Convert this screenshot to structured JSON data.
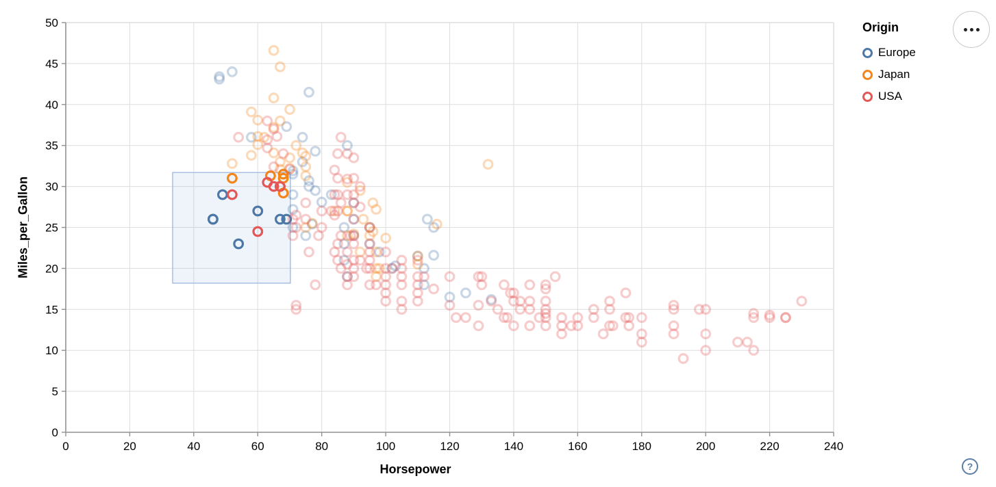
{
  "chart_data": {
    "type": "scatter",
    "title": "",
    "xlabel": "Horsepower",
    "ylabel": "Miles_per_Gallon",
    "xlim": [
      0,
      240
    ],
    "ylim": [
      0,
      50
    ],
    "x_ticks": [
      0,
      20,
      40,
      60,
      80,
      100,
      120,
      140,
      160,
      180,
      200,
      220,
      240
    ],
    "y_ticks": [
      0,
      5,
      10,
      15,
      20,
      25,
      30,
      35,
      40,
      45,
      50
    ],
    "grid": true,
    "legend": {
      "title": "Origin",
      "position": "right",
      "entries": [
        {
          "label": "Europe",
          "color": "#4c78a8"
        },
        {
          "label": "Japan",
          "color": "#f58518"
        },
        {
          "label": "USA",
          "color": "#e45756"
        }
      ]
    },
    "brush": {
      "hp_min": 33.4,
      "hp_max": 70.2,
      "mpg_min": 18.2,
      "mpg_max": 31.7,
      "fill": "#7fa8d9",
      "fill_opacity": 0.13,
      "stroke": "#a6bfe3"
    },
    "point_style": {
      "radius": 6.3,
      "stroke_width": 3.2,
      "faded_opacity": 0.3
    },
    "origin_colors": {
      "e": "#4c78a8",
      "j": "#f58518",
      "u": "#e45756"
    },
    "points": [
      [
        46,
        26,
        "e"
      ],
      [
        46,
        26,
        "e"
      ],
      [
        49,
        29,
        "e"
      ],
      [
        54,
        23,
        "e"
      ],
      [
        60,
        27,
        "e"
      ],
      [
        67,
        26,
        "e"
      ],
      [
        69,
        26,
        "e"
      ],
      [
        67,
        30,
        "e"
      ],
      [
        67,
        30,
        "e"
      ],
      [
        87,
        25,
        "e"
      ],
      [
        90,
        24,
        "e"
      ],
      [
        95,
        25,
        "e"
      ],
      [
        113,
        26,
        "e"
      ],
      [
        90,
        28,
        "e"
      ],
      [
        76,
        30,
        "e"
      ],
      [
        112,
        18,
        "e"
      ],
      [
        87,
        21,
        "e"
      ],
      [
        112,
        20,
        "e"
      ],
      [
        90,
        26,
        "e"
      ],
      [
        75,
        24,
        "e"
      ],
      [
        83,
        29,
        "e"
      ],
      [
        71,
        25,
        "e"
      ],
      [
        95,
        23,
        "e"
      ],
      [
        87,
        23,
        "e"
      ],
      [
        98,
        22,
        "e"
      ],
      [
        115,
        25,
        "e"
      ],
      [
        71,
        29,
        "e"
      ],
      [
        110,
        21.5,
        "e"
      ],
      [
        88,
        19,
        "e"
      ],
      [
        102,
        20,
        "e"
      ],
      [
        78,
        29.5,
        "e"
      ],
      [
        58,
        36,
        "e"
      ],
      [
        48,
        43.1,
        "e"
      ],
      [
        103,
        20.3,
        "e"
      ],
      [
        125,
        17,
        "e"
      ],
      [
        115,
        21.6,
        "e"
      ],
      [
        133,
        16.2,
        "e"
      ],
      [
        71,
        31.5,
        "e"
      ],
      [
        71,
        31.9,
        "e"
      ],
      [
        77,
        25.4,
        "e"
      ],
      [
        71,
        27.2,
        "e"
      ],
      [
        69,
        37.3,
        "e"
      ],
      [
        48,
        43.4,
        "e"
      ],
      [
        78,
        34.3,
        "e"
      ],
      [
        76,
        41.5,
        "e"
      ],
      [
        74,
        33,
        "e"
      ],
      [
        80,
        28.1,
        "e"
      ],
      [
        76,
        30.7,
        "e"
      ],
      [
        88,
        35,
        "e"
      ],
      [
        52,
        44,
        "e"
      ],
      [
        74,
        36,
        "e"
      ],
      [
        120,
        16.5,
        "e"
      ],
      [
        52,
        31,
        "j"
      ],
      [
        64,
        31.3,
        "j"
      ],
      [
        68,
        31.5,
        "j"
      ],
      [
        68,
        31,
        "j"
      ],
      [
        68,
        29.2,
        "j"
      ],
      [
        67,
        30,
        "j"
      ],
      [
        95,
        24,
        "j"
      ],
      [
        88,
        27,
        "j"
      ],
      [
        88,
        27,
        "j"
      ],
      [
        95,
        25,
        "j"
      ],
      [
        97,
        19,
        "j"
      ],
      [
        98,
        20,
        "j"
      ],
      [
        92,
        22,
        "j"
      ],
      [
        65,
        46.6,
        "j"
      ],
      [
        67,
        44.6,
        "j"
      ],
      [
        65,
        40.8,
        "j"
      ],
      [
        58,
        39.1,
        "j"
      ],
      [
        60,
        38.1,
        "j"
      ],
      [
        65,
        37.2,
        "j"
      ],
      [
        60,
        36.1,
        "j"
      ],
      [
        67,
        38,
        "j"
      ],
      [
        70,
        39.4,
        "j"
      ],
      [
        52,
        32.8,
        "j"
      ],
      [
        75,
        31.3,
        "j"
      ],
      [
        96,
        28,
        "j"
      ],
      [
        75,
        25,
        "j"
      ],
      [
        116,
        25.4,
        "j"
      ],
      [
        97,
        22,
        "j"
      ],
      [
        110,
        21.5,
        "j"
      ],
      [
        93,
        26,
        "j"
      ],
      [
        67,
        32.1,
        "j"
      ],
      [
        88,
        30.5,
        "j"
      ],
      [
        72,
        35,
        "j"
      ],
      [
        77,
        25.5,
        "j"
      ],
      [
        97,
        20,
        "j"
      ],
      [
        110,
        20.5,
        "j"
      ],
      [
        132,
        32.7,
        "j"
      ],
      [
        75,
        33.7,
        "j"
      ],
      [
        97,
        27.2,
        "j"
      ],
      [
        74,
        34.1,
        "j"
      ],
      [
        90,
        24.2,
        "j"
      ],
      [
        96,
        24.5,
        "j"
      ],
      [
        70,
        33.5,
        "j"
      ],
      [
        75,
        32.4,
        "j"
      ],
      [
        67,
        33,
        "j"
      ],
      [
        65,
        34.1,
        "j"
      ],
      [
        62,
        36,
        "j"
      ],
      [
        60,
        35.1,
        "j"
      ],
      [
        58,
        33.8,
        "j"
      ],
      [
        70,
        32.2,
        "j"
      ],
      [
        100,
        23.7,
        "j"
      ],
      [
        88,
        24,
        "j"
      ],
      [
        84,
        27,
        "j"
      ],
      [
        92,
        29.5,
        "j"
      ],
      [
        52,
        29,
        "u"
      ],
      [
        60,
        24.5,
        "u"
      ],
      [
        63,
        30.5,
        "u"
      ],
      [
        65,
        30,
        "u"
      ],
      [
        67,
        30,
        "u"
      ],
      [
        130,
        18,
        "u"
      ],
      [
        165,
        15,
        "u"
      ],
      [
        150,
        18,
        "u"
      ],
      [
        150,
        16,
        "u"
      ],
      [
        140,
        17,
        "u"
      ],
      [
        198,
        15,
        "u"
      ],
      [
        220,
        14,
        "u"
      ],
      [
        215,
        14,
        "u"
      ],
      [
        225,
        14,
        "u"
      ],
      [
        190,
        15,
        "u"
      ],
      [
        170,
        15,
        "u"
      ],
      [
        160,
        14,
        "u"
      ],
      [
        150,
        15,
        "u"
      ],
      [
        225,
        14,
        "u"
      ],
      [
        215,
        10,
        "u"
      ],
      [
        200,
        10,
        "u"
      ],
      [
        210,
        11,
        "u"
      ],
      [
        193,
        9,
        "u"
      ],
      [
        175,
        17,
        "u"
      ],
      [
        153,
        19,
        "u"
      ],
      [
        180,
        14,
        "u"
      ],
      [
        170,
        13,
        "u"
      ],
      [
        175,
        14,
        "u"
      ],
      [
        145,
        16,
        "u"
      ],
      [
        137,
        18,
        "u"
      ],
      [
        150,
        14,
        "u"
      ],
      [
        158,
        13,
        "u"
      ],
      [
        140,
        13,
        "u"
      ],
      [
        150,
        14.5,
        "u"
      ],
      [
        140,
        16,
        "u"
      ],
      [
        148,
        14,
        "u"
      ],
      [
        145,
        13,
        "u"
      ],
      [
        137,
        14,
        "u"
      ],
      [
        145,
        18,
        "u"
      ],
      [
        230,
        16,
        "u"
      ],
      [
        180,
        12,
        "u"
      ],
      [
        170,
        16,
        "u"
      ],
      [
        190,
        12,
        "u"
      ],
      [
        155,
        13,
        "u"
      ],
      [
        142,
        15,
        "u"
      ],
      [
        155,
        12,
        "u"
      ],
      [
        160,
        13,
        "u"
      ],
      [
        150,
        13,
        "u"
      ],
      [
        150,
        17.5,
        "u"
      ],
      [
        155,
        14,
        "u"
      ],
      [
        145,
        15,
        "u"
      ],
      [
        165,
        14,
        "u"
      ],
      [
        139,
        17,
        "u"
      ],
      [
        129,
        15.5,
        "u"
      ],
      [
        138,
        14,
        "u"
      ],
      [
        135,
        15,
        "u"
      ],
      [
        142,
        16,
        "u"
      ],
      [
        176,
        14,
        "u"
      ],
      [
        176,
        13,
        "u"
      ],
      [
        171,
        13,
        "u"
      ],
      [
        168,
        12,
        "u"
      ],
      [
        180,
        11,
        "u"
      ],
      [
        190,
        15.5,
        "u"
      ],
      [
        190,
        13,
        "u"
      ],
      [
        200,
        15,
        "u"
      ],
      [
        200,
        12,
        "u"
      ],
      [
        213,
        11,
        "u"
      ],
      [
        215,
        14.5,
        "u"
      ],
      [
        220,
        14.3,
        "u"
      ],
      [
        125,
        14,
        "u"
      ],
      [
        120,
        15.5,
        "u"
      ],
      [
        122,
        14,
        "u"
      ],
      [
        133,
        16,
        "u"
      ],
      [
        129,
        13,
        "u"
      ],
      [
        95,
        22,
        "u"
      ],
      [
        97,
        18,
        "u"
      ],
      [
        85,
        21,
        "u"
      ],
      [
        90,
        21,
        "u"
      ],
      [
        100,
        19,
        "u"
      ],
      [
        105,
        16,
        "u"
      ],
      [
        100,
        18,
        "u"
      ],
      [
        88,
        19,
        "u"
      ],
      [
        100,
        20,
        "u"
      ],
      [
        105,
        15,
        "u"
      ],
      [
        110,
        21,
        "u"
      ],
      [
        110,
        19,
        "u"
      ],
      [
        110,
        18,
        "u"
      ],
      [
        112,
        19,
        "u"
      ],
      [
        90,
        20,
        "u"
      ],
      [
        88,
        18,
        "u"
      ],
      [
        86,
        20,
        "u"
      ],
      [
        95,
        20,
        "u"
      ],
      [
        100,
        17,
        "u"
      ],
      [
        100,
        16,
        "u"
      ],
      [
        95,
        18,
        "u"
      ],
      [
        102,
        20,
        "u"
      ],
      [
        110,
        17,
        "u"
      ],
      [
        120,
        19,
        "u"
      ],
      [
        105,
        20,
        "u"
      ],
      [
        105,
        19,
        "u"
      ],
      [
        105,
        18,
        "u"
      ],
      [
        110,
        16,
        "u"
      ],
      [
        115,
        17.5,
        "u"
      ],
      [
        130,
        19,
        "u"
      ],
      [
        129,
        19,
        "u"
      ],
      [
        88,
        20.5,
        "u"
      ],
      [
        95,
        23,
        "u"
      ],
      [
        90,
        23,
        "u"
      ],
      [
        86,
        24,
        "u"
      ],
      [
        100,
        22,
        "u"
      ],
      [
        88,
        22,
        "u"
      ],
      [
        92,
        21,
        "u"
      ],
      [
        94,
        20,
        "u"
      ],
      [
        90,
        19,
        "u"
      ],
      [
        105,
        21,
        "u"
      ],
      [
        85,
        23,
        "u"
      ],
      [
        84,
        22,
        "u"
      ],
      [
        89,
        24,
        "u"
      ],
      [
        95,
        21,
        "u"
      ],
      [
        90,
        28,
        "u"
      ],
      [
        95,
        25,
        "u"
      ],
      [
        75,
        26,
        "u"
      ],
      [
        80,
        25,
        "u"
      ],
      [
        71,
        24,
        "u"
      ],
      [
        72,
        26.5,
        "u"
      ],
      [
        90,
        24,
        "u"
      ],
      [
        84,
        26.5,
        "u"
      ],
      [
        84,
        29,
        "u"
      ],
      [
        85,
        29,
        "u"
      ],
      [
        85,
        27,
        "u"
      ],
      [
        90,
        26,
        "u"
      ],
      [
        71,
        26,
        "u"
      ],
      [
        72,
        25,
        "u"
      ],
      [
        79,
        24,
        "u"
      ],
      [
        76,
        22,
        "u"
      ],
      [
        83,
        27,
        "u"
      ],
      [
        88,
        29,
        "u"
      ],
      [
        92,
        27.5,
        "u"
      ],
      [
        75,
        28,
        "u"
      ],
      [
        80,
        27,
        "u"
      ],
      [
        86,
        28,
        "u"
      ],
      [
        90,
        29,
        "u"
      ],
      [
        88,
        30.9,
        "u"
      ],
      [
        85,
        31,
        "u"
      ],
      [
        90,
        31,
        "u"
      ],
      [
        72,
        15,
        "u"
      ],
      [
        72,
        15.5,
        "u"
      ],
      [
        78,
        18,
        "u"
      ],
      [
        63,
        34.7,
        "u"
      ],
      [
        63,
        38,
        "u"
      ],
      [
        66,
        36.1,
        "u"
      ],
      [
        70,
        32.1,
        "u"
      ],
      [
        65,
        37,
        "u"
      ],
      [
        54,
        36,
        "u"
      ],
      [
        63,
        35.7,
        "u"
      ],
      [
        68,
        34,
        "u"
      ],
      [
        65,
        32.4,
        "u"
      ],
      [
        90,
        33.5,
        "u"
      ],
      [
        85,
        34,
        "u"
      ],
      [
        84,
        32,
        "u"
      ],
      [
        86,
        36,
        "u"
      ],
      [
        88,
        34,
        "u"
      ],
      [
        92,
        30,
        "u"
      ]
    ]
  },
  "legend": {
    "title": "Origin",
    "entries": [
      {
        "label": "Europe",
        "color": "#4c78a8"
      },
      {
        "label": "Japan",
        "color": "#f58518"
      },
      {
        "label": "USA",
        "color": "#e45756"
      }
    ]
  },
  "axes": {
    "x_title": "Horsepower",
    "y_title": "Miles_per_Gallon"
  },
  "menu_button": {
    "icon": "ellipsis"
  },
  "help_button": {
    "label": "?"
  }
}
